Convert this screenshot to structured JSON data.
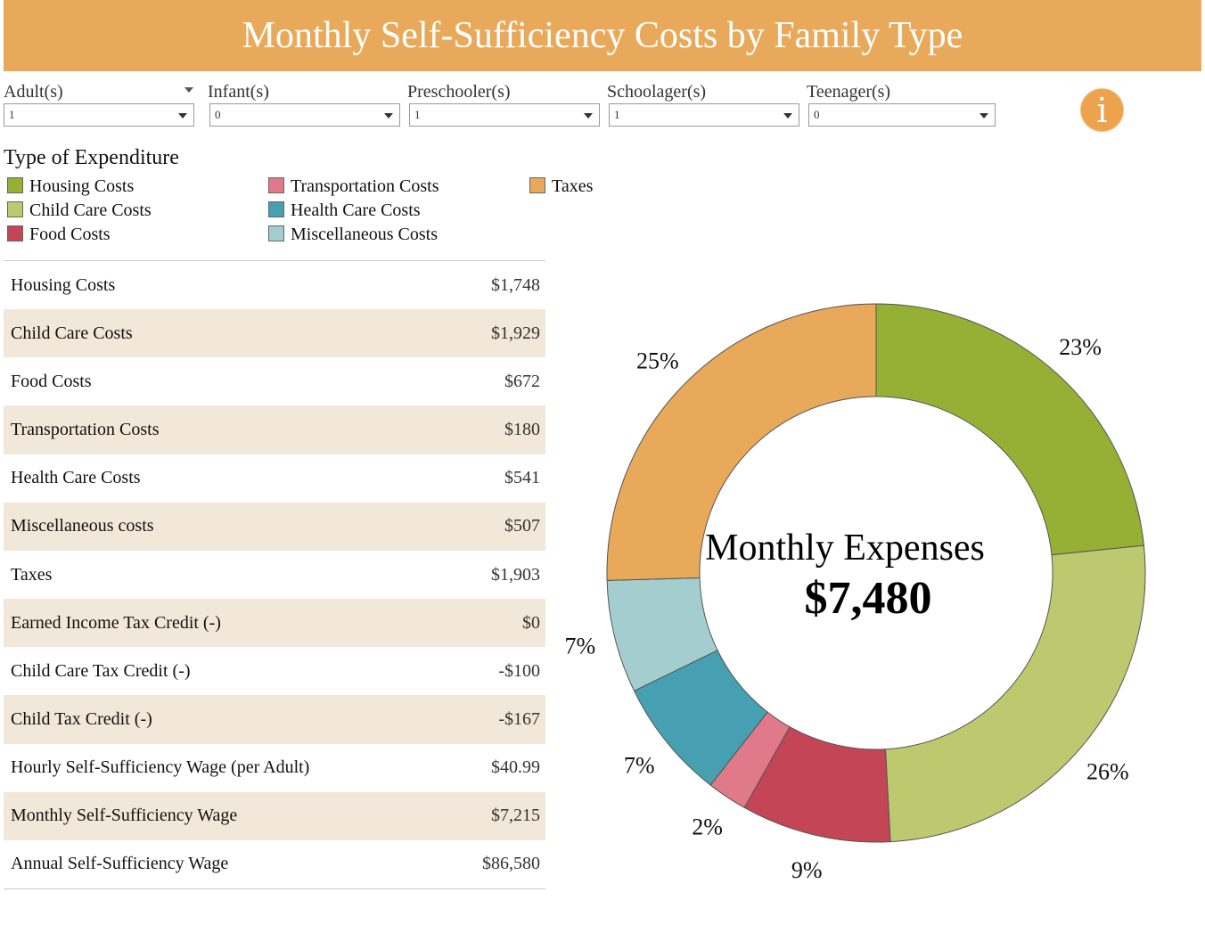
{
  "header": {
    "title": "Monthly Self-Sufficiency Costs by Family Type"
  },
  "filters": [
    {
      "label": "Adult(s)",
      "value": "1"
    },
    {
      "label": "Infant(s)",
      "value": "0"
    },
    {
      "label": "Preschooler(s)",
      "value": "1"
    },
    {
      "label": "Schoolager(s)",
      "value": "1"
    },
    {
      "label": "Teenager(s)",
      "value": "0"
    }
  ],
  "info_icon": "info-icon",
  "legend": {
    "title": "Type of Expenditure",
    "items": [
      {
        "label": "Housing Costs",
        "color": "#95b035"
      },
      {
        "label": "Child Care Costs",
        "color": "#bcc96e"
      },
      {
        "label": "Food Costs",
        "color": "#c34556"
      },
      {
        "label": "Transportation Costs",
        "color": "#e07a8a"
      },
      {
        "label": "Health Care Costs",
        "color": "#46a0b1"
      },
      {
        "label": "Miscellaneous Costs",
        "color": "#a4cdd0"
      },
      {
        "label": "Taxes",
        "color": "#e8a95a"
      }
    ]
  },
  "table": {
    "rows": [
      {
        "label": "Housing Costs",
        "value": "$1,748"
      },
      {
        "label": "Child Care Costs",
        "value": "$1,929"
      },
      {
        "label": "Food Costs",
        "value": "$672"
      },
      {
        "label": "Transportation Costs",
        "value": "$180"
      },
      {
        "label": "Health Care Costs",
        "value": "$541"
      },
      {
        "label": "Miscellaneous costs",
        "value": "$507"
      },
      {
        "label": "Taxes",
        "value": "$1,903"
      },
      {
        "label": "Earned Income Tax Credit (-)",
        "value": "$0"
      },
      {
        "label": "Child Care Tax Credit (-)",
        "value": "-$100"
      },
      {
        "label": "Child Tax Credit (-)",
        "value": "-$167"
      },
      {
        "label": "Hourly Self-Sufficiency Wage (per Adult)",
        "value": "$40.99"
      },
      {
        "label": "Monthly Self-Sufficiency Wage",
        "value": "$7,215"
      },
      {
        "label": "Annual Self-Sufficiency Wage",
        "value": "$86,580"
      }
    ]
  },
  "chart_data": {
    "type": "pie",
    "donut": true,
    "center_title": "Monthly Expenses",
    "center_value": "$7,480",
    "slices": [
      {
        "label": "Housing Costs",
        "value": 1748,
        "pct_label": "23%",
        "color": "#95b035"
      },
      {
        "label": "Child Care Costs",
        "value": 1929,
        "pct_label": "26%",
        "color": "#bcc96e"
      },
      {
        "label": "Food Costs",
        "value": 672,
        "pct_label": "9%",
        "color": "#c34556"
      },
      {
        "label": "Transportation Costs",
        "value": 180,
        "pct_label": "2%",
        "color": "#e07a8a"
      },
      {
        "label": "Health Care Costs",
        "value": 541,
        "pct_label": "7%",
        "color": "#46a0b1"
      },
      {
        "label": "Miscellaneous Costs",
        "value": 507,
        "pct_label": "7%",
        "color": "#a4cdd0"
      },
      {
        "label": "Taxes",
        "value": 1903,
        "pct_label": "25%",
        "color": "#e8a95a"
      }
    ]
  }
}
